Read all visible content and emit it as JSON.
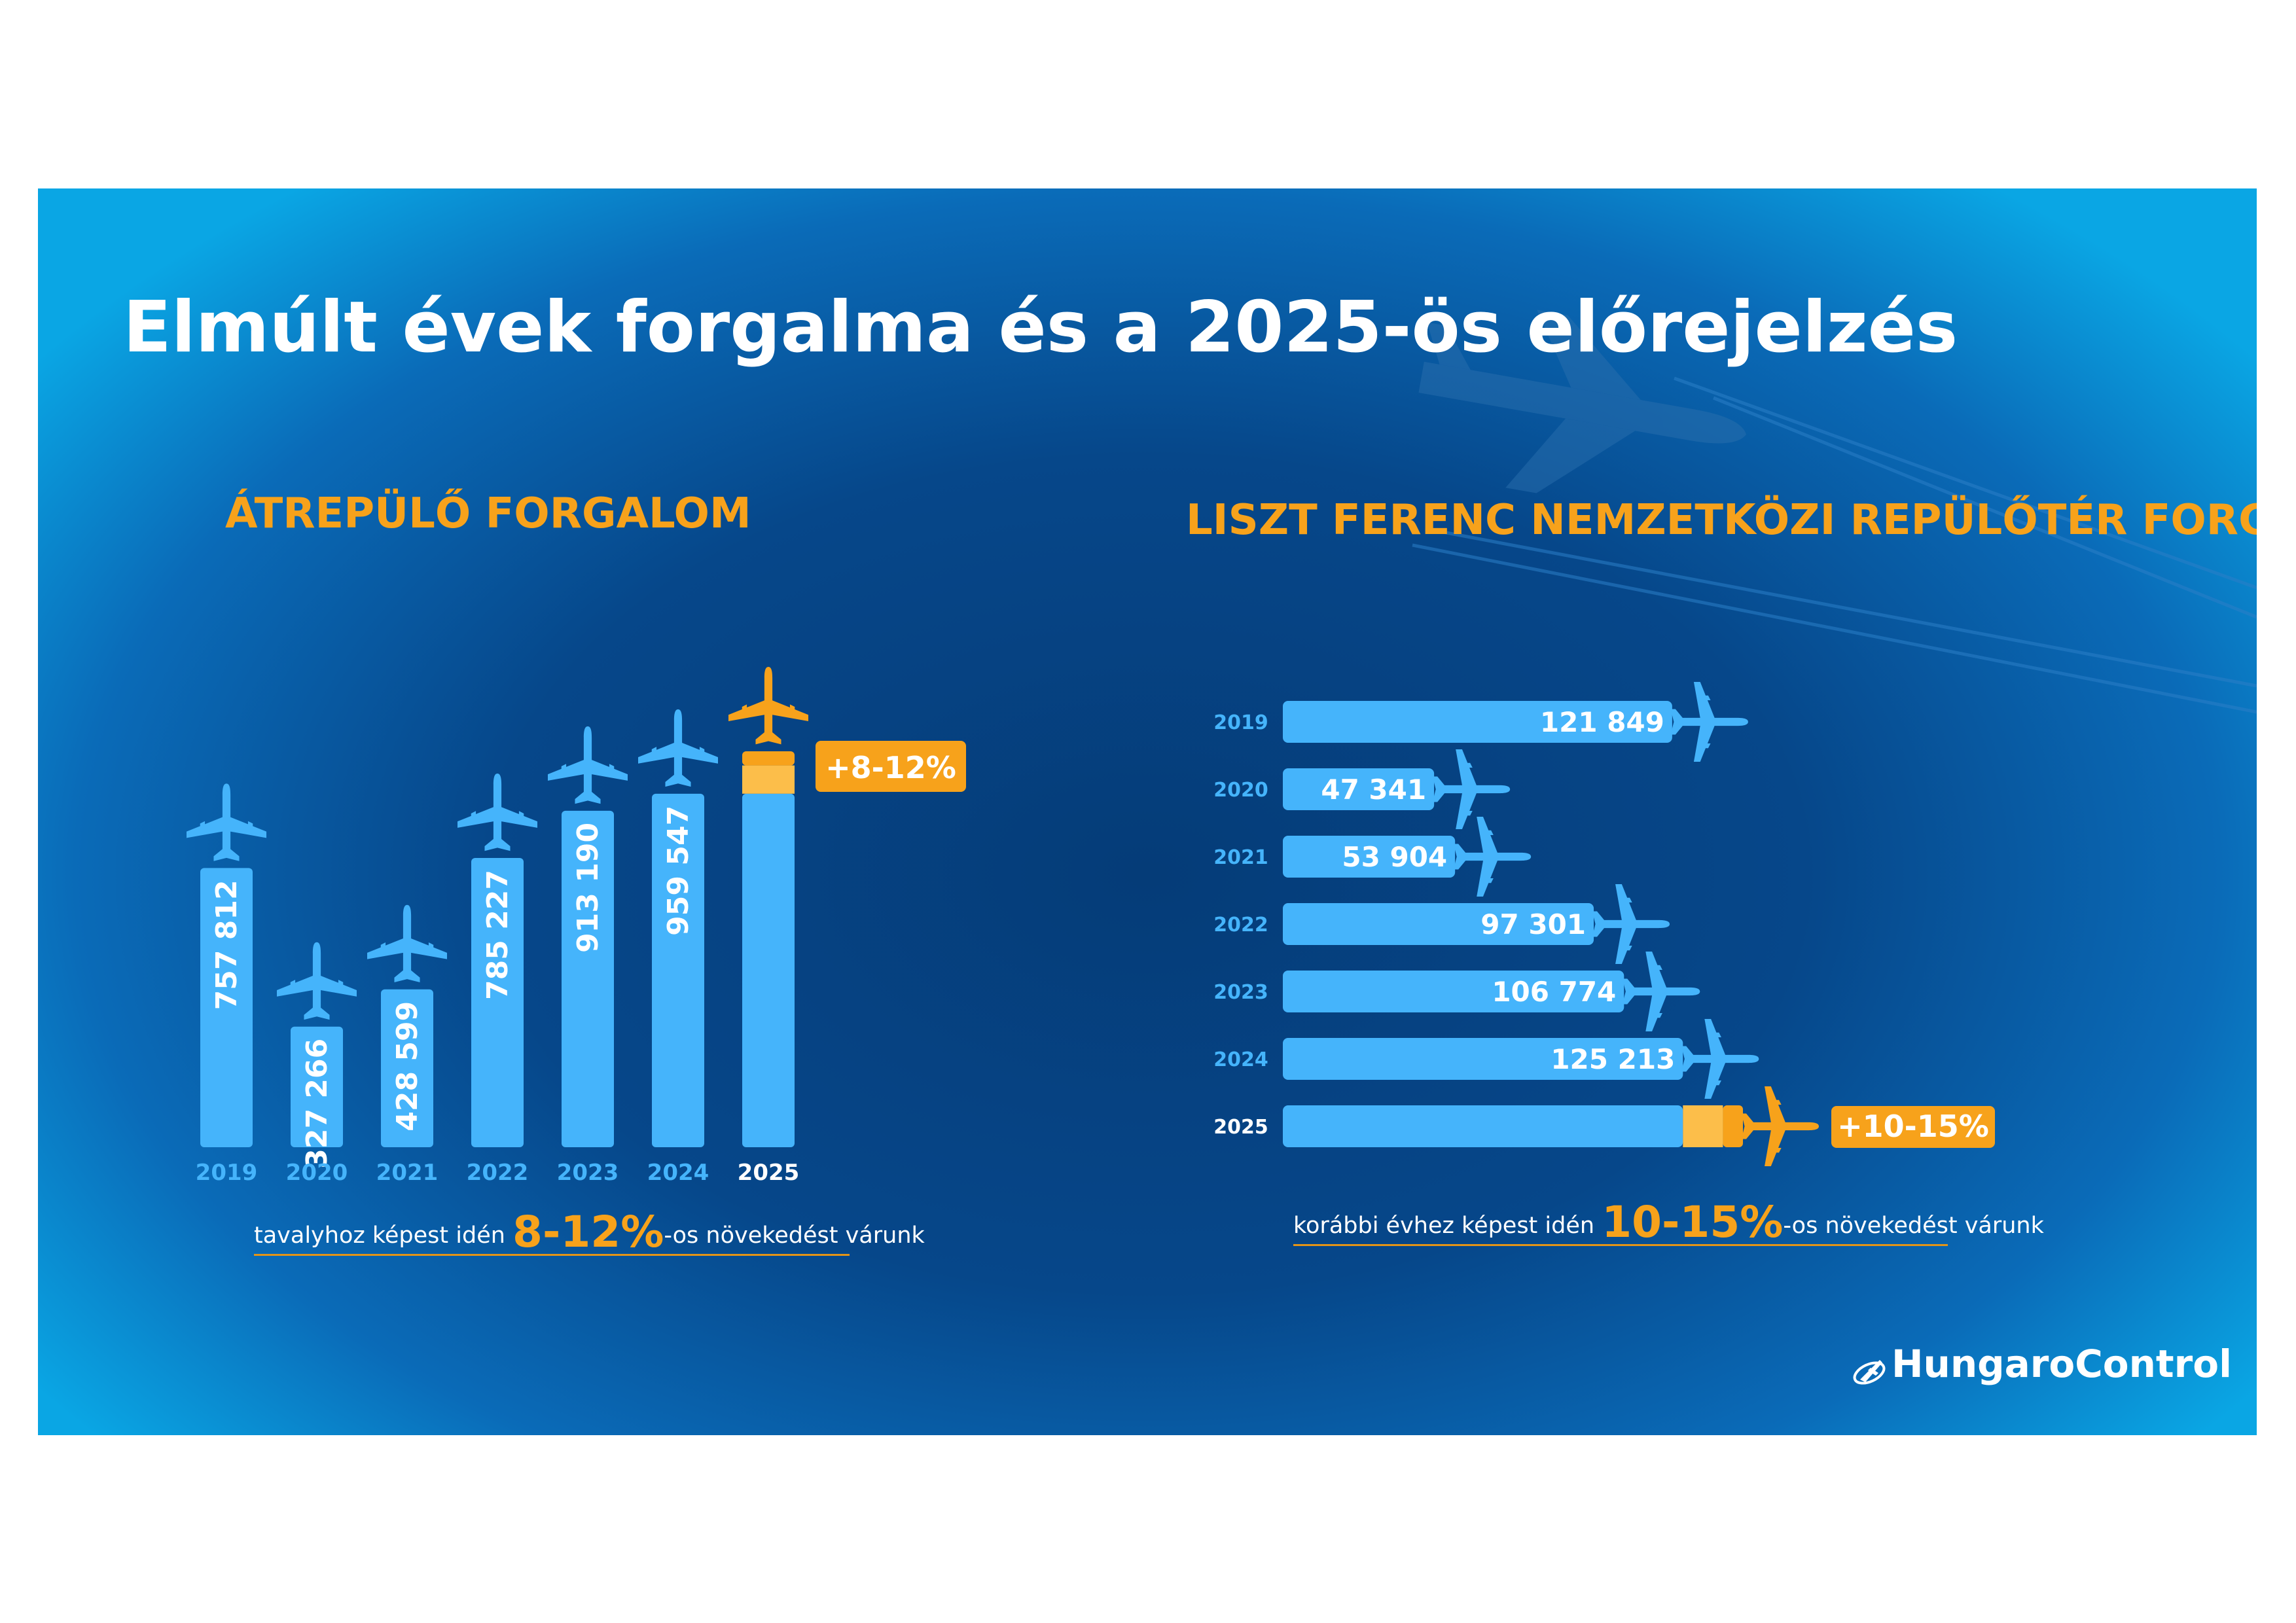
{
  "title": "Elmúlt évek forgalma és a 2025-ös előrejelzés",
  "colors": {
    "bar": "#45b4fb",
    "accent": "#f7a21b",
    "accent_light": "#fcbe4a",
    "year_label": "#45b4fb",
    "highlight_year": "#ffffff"
  },
  "chart_data": [
    {
      "type": "bar",
      "title": "ÁTREPÜLŐ  FORGALOM",
      "orientation": "vertical",
      "categories": [
        "2019",
        "2020",
        "2021",
        "2022",
        "2023",
        "2024",
        "2025"
      ],
      "values": [
        757812,
        327266,
        428599,
        785227,
        913190,
        959547,
        null
      ],
      "value_labels": [
        "757 812",
        "327 266",
        "428 599",
        "785 227",
        "913 190",
        "959 547",
        ""
      ],
      "forecast": {
        "category": "2025",
        "label": "+8-12%",
        "growth_min_pct": 8,
        "growth_max_pct": 12
      },
      "note": {
        "prefix": "tavalyhoz képest idén ",
        "highlight": "8-12%",
        "suffix": "-os növekedést várunk"
      }
    },
    {
      "type": "bar",
      "title": "LISZT FERENC NEMZETKÖZI REPÜLŐTÉR FORGALMA",
      "orientation": "horizontal",
      "categories": [
        "2019",
        "2020",
        "2021",
        "2022",
        "2023",
        "2024",
        "2025"
      ],
      "values": [
        121849,
        47341,
        53904,
        97301,
        106774,
        125213,
        null
      ],
      "value_labels": [
        "121 849",
        "47 341",
        "53 904",
        "97 301",
        "106 774",
        "125 213",
        ""
      ],
      "forecast": {
        "category": "2025",
        "label": "+10-15%",
        "growth_min_pct": 10,
        "growth_max_pct": 15
      },
      "note": {
        "prefix": "korábbi évhez képest idén ",
        "highlight": "10-15%",
        "suffix": "-os növekedést várunk"
      }
    }
  ],
  "logo": {
    "text": "HungaroControl",
    "icon": "hungarocontrol-logo-icon"
  }
}
